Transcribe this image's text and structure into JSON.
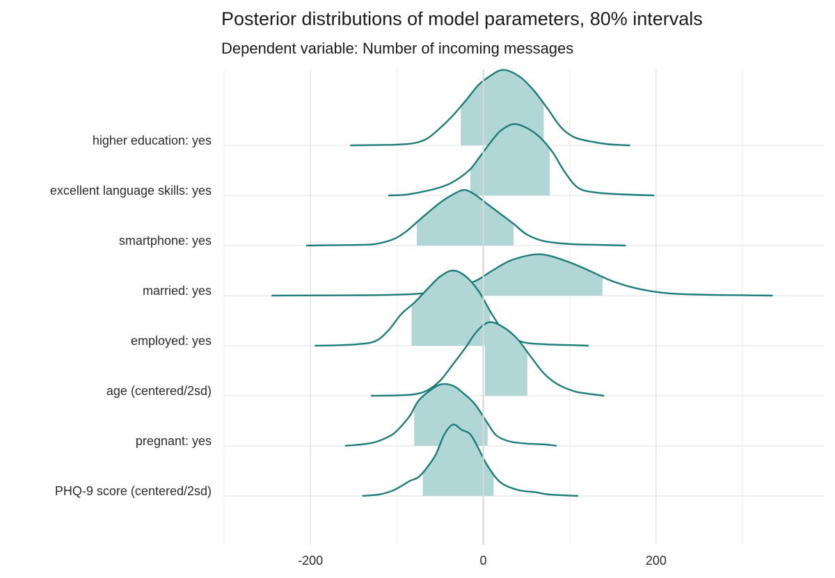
{
  "chart_data": {
    "type": "ridgeline",
    "title": "Posterior distributions of model parameters, 80% intervals",
    "subtitle": "Dependent variable: Number of incoming messages",
    "xlabel": "",
    "ylabel": "",
    "xlim": [
      -300,
      395
    ],
    "xticks": [
      -200,
      0,
      200
    ],
    "xtick_labels": [
      "-200",
      "0",
      "200"
    ],
    "grid": true,
    "colors": {
      "line": "#1c7c7a",
      "interval_fill": "#b0d6d5",
      "grid": "#e6e6e6",
      "zero_line": "#d7d7d7"
    },
    "parameters": [
      {
        "label": "higher education: yes",
        "interval": [
          -26,
          70
        ],
        "density": [
          [
            -154,
            0
          ],
          [
            -120,
            0.005
          ],
          [
            -100,
            0.01
          ],
          [
            -80,
            0.03
          ],
          [
            -65,
            0.09
          ],
          [
            -50,
            0.23
          ],
          [
            -35,
            0.4
          ],
          [
            -20,
            0.6
          ],
          [
            -5,
            0.81
          ],
          [
            10,
            0.94
          ],
          [
            20,
            1.0
          ],
          [
            30,
            0.99
          ],
          [
            45,
            0.89
          ],
          [
            60,
            0.71
          ],
          [
            75,
            0.48
          ],
          [
            90,
            0.24
          ],
          [
            105,
            0.11
          ],
          [
            125,
            0.05
          ],
          [
            145,
            0.015
          ],
          [
            170,
            0
          ]
        ]
      },
      {
        "label": "excellent language skills: yes",
        "interval": [
          -15,
          77
        ],
        "density": [
          [
            -110,
            0
          ],
          [
            -90,
            0.01
          ],
          [
            -70,
            0.05
          ],
          [
            -55,
            0.09
          ],
          [
            -40,
            0.15
          ],
          [
            -28,
            0.23
          ],
          [
            -15,
            0.35
          ],
          [
            -3,
            0.53
          ],
          [
            8,
            0.7
          ],
          [
            20,
            0.86
          ],
          [
            35,
            0.95
          ],
          [
            50,
            0.9
          ],
          [
            65,
            0.78
          ],
          [
            80,
            0.58
          ],
          [
            95,
            0.3
          ],
          [
            110,
            0.1
          ],
          [
            130,
            0.04
          ],
          [
            160,
            0.015
          ],
          [
            198,
            0
          ]
        ]
      },
      {
        "label": "smartphone: yes",
        "interval": [
          -77,
          35
        ],
        "density": [
          [
            -205,
            0
          ],
          [
            -170,
            0.005
          ],
          [
            -140,
            0.01
          ],
          [
            -125,
            0.02
          ],
          [
            -105,
            0.08
          ],
          [
            -90,
            0.18
          ],
          [
            -70,
            0.38
          ],
          [
            -50,
            0.57
          ],
          [
            -35,
            0.68
          ],
          [
            -22,
            0.74
          ],
          [
            -10,
            0.68
          ],
          [
            5,
            0.55
          ],
          [
            20,
            0.42
          ],
          [
            35,
            0.29
          ],
          [
            50,
            0.15
          ],
          [
            70,
            0.06
          ],
          [
            100,
            0.02
          ],
          [
            130,
            0.01
          ],
          [
            165,
            0
          ]
        ]
      },
      {
        "label": "married: yes",
        "interval": [
          -10,
          138
        ],
        "density": [
          [
            -245,
            0
          ],
          [
            -200,
            0.002
          ],
          [
            -150,
            0.004
          ],
          [
            -110,
            0.01
          ],
          [
            -70,
            0.03
          ],
          [
            -40,
            0.08
          ],
          [
            -10,
            0.19
          ],
          [
            10,
            0.33
          ],
          [
            30,
            0.46
          ],
          [
            50,
            0.53
          ],
          [
            65,
            0.55
          ],
          [
            80,
            0.52
          ],
          [
            105,
            0.42
          ],
          [
            125,
            0.32
          ],
          [
            150,
            0.19
          ],
          [
            180,
            0.09
          ],
          [
            215,
            0.03
          ],
          [
            265,
            0.01
          ],
          [
            300,
            0.005
          ],
          [
            335,
            0
          ]
        ]
      },
      {
        "label": "employed: yes",
        "interval": [
          -83,
          8
        ],
        "density": [
          [
            -195,
            0
          ],
          [
            -170,
            0.005
          ],
          [
            -145,
            0.02
          ],
          [
            -125,
            0.06
          ],
          [
            -110,
            0.2
          ],
          [
            -95,
            0.42
          ],
          [
            -80,
            0.57
          ],
          [
            -65,
            0.75
          ],
          [
            -50,
            0.92
          ],
          [
            -35,
            1.0
          ],
          [
            -20,
            0.92
          ],
          [
            -5,
            0.72
          ],
          [
            10,
            0.42
          ],
          [
            25,
            0.18
          ],
          [
            45,
            0.05
          ],
          [
            70,
            0.02
          ],
          [
            95,
            0.01
          ],
          [
            122,
            0
          ]
        ]
      },
      {
        "label": "age (centered/2sd)",
        "interval": [
          2,
          51
        ],
        "density": [
          [
            -130,
            0
          ],
          [
            -100,
            0.005
          ],
          [
            -80,
            0.02
          ],
          [
            -65,
            0.07
          ],
          [
            -50,
            0.2
          ],
          [
            -35,
            0.42
          ],
          [
            -20,
            0.65
          ],
          [
            -10,
            0.82
          ],
          [
            0,
            0.94
          ],
          [
            10,
            0.98
          ],
          [
            25,
            0.9
          ],
          [
            40,
            0.75
          ],
          [
            55,
            0.52
          ],
          [
            70,
            0.3
          ],
          [
            85,
            0.16
          ],
          [
            105,
            0.06
          ],
          [
            120,
            0.03
          ],
          [
            140,
            0
          ]
        ]
      },
      {
        "label": "pregnant: yes",
        "interval": [
          -80,
          5
        ],
        "density": [
          [
            -160,
            0
          ],
          [
            -140,
            0.02
          ],
          [
            -125,
            0.05
          ],
          [
            -110,
            0.12
          ],
          [
            -100,
            0.2
          ],
          [
            -85,
            0.4
          ],
          [
            -75,
            0.6
          ],
          [
            -60,
            0.75
          ],
          [
            -48,
            0.82
          ],
          [
            -35,
            0.8
          ],
          [
            -25,
            0.72
          ],
          [
            -10,
            0.56
          ],
          [
            5,
            0.3
          ],
          [
            15,
            0.14
          ],
          [
            30,
            0.06
          ],
          [
            50,
            0.03
          ],
          [
            70,
            0.02
          ],
          [
            85,
            0
          ]
        ]
      },
      {
        "label": "PHQ-9 score (centered/2sd)",
        "interval": [
          -70,
          12
        ],
        "density": [
          [
            -140,
            0
          ],
          [
            -120,
            0.02
          ],
          [
            -105,
            0.07
          ],
          [
            -95,
            0.13
          ],
          [
            -85,
            0.2
          ],
          [
            -75,
            0.25
          ],
          [
            -65,
            0.38
          ],
          [
            -55,
            0.55
          ],
          [
            -45,
            0.82
          ],
          [
            -35,
            0.95
          ],
          [
            -25,
            0.88
          ],
          [
            -15,
            0.82
          ],
          [
            -5,
            0.62
          ],
          [
            5,
            0.4
          ],
          [
            20,
            0.18
          ],
          [
            40,
            0.08
          ],
          [
            60,
            0.05
          ],
          [
            75,
            0.02
          ],
          [
            90,
            0.01
          ],
          [
            110,
            0
          ]
        ]
      }
    ]
  }
}
